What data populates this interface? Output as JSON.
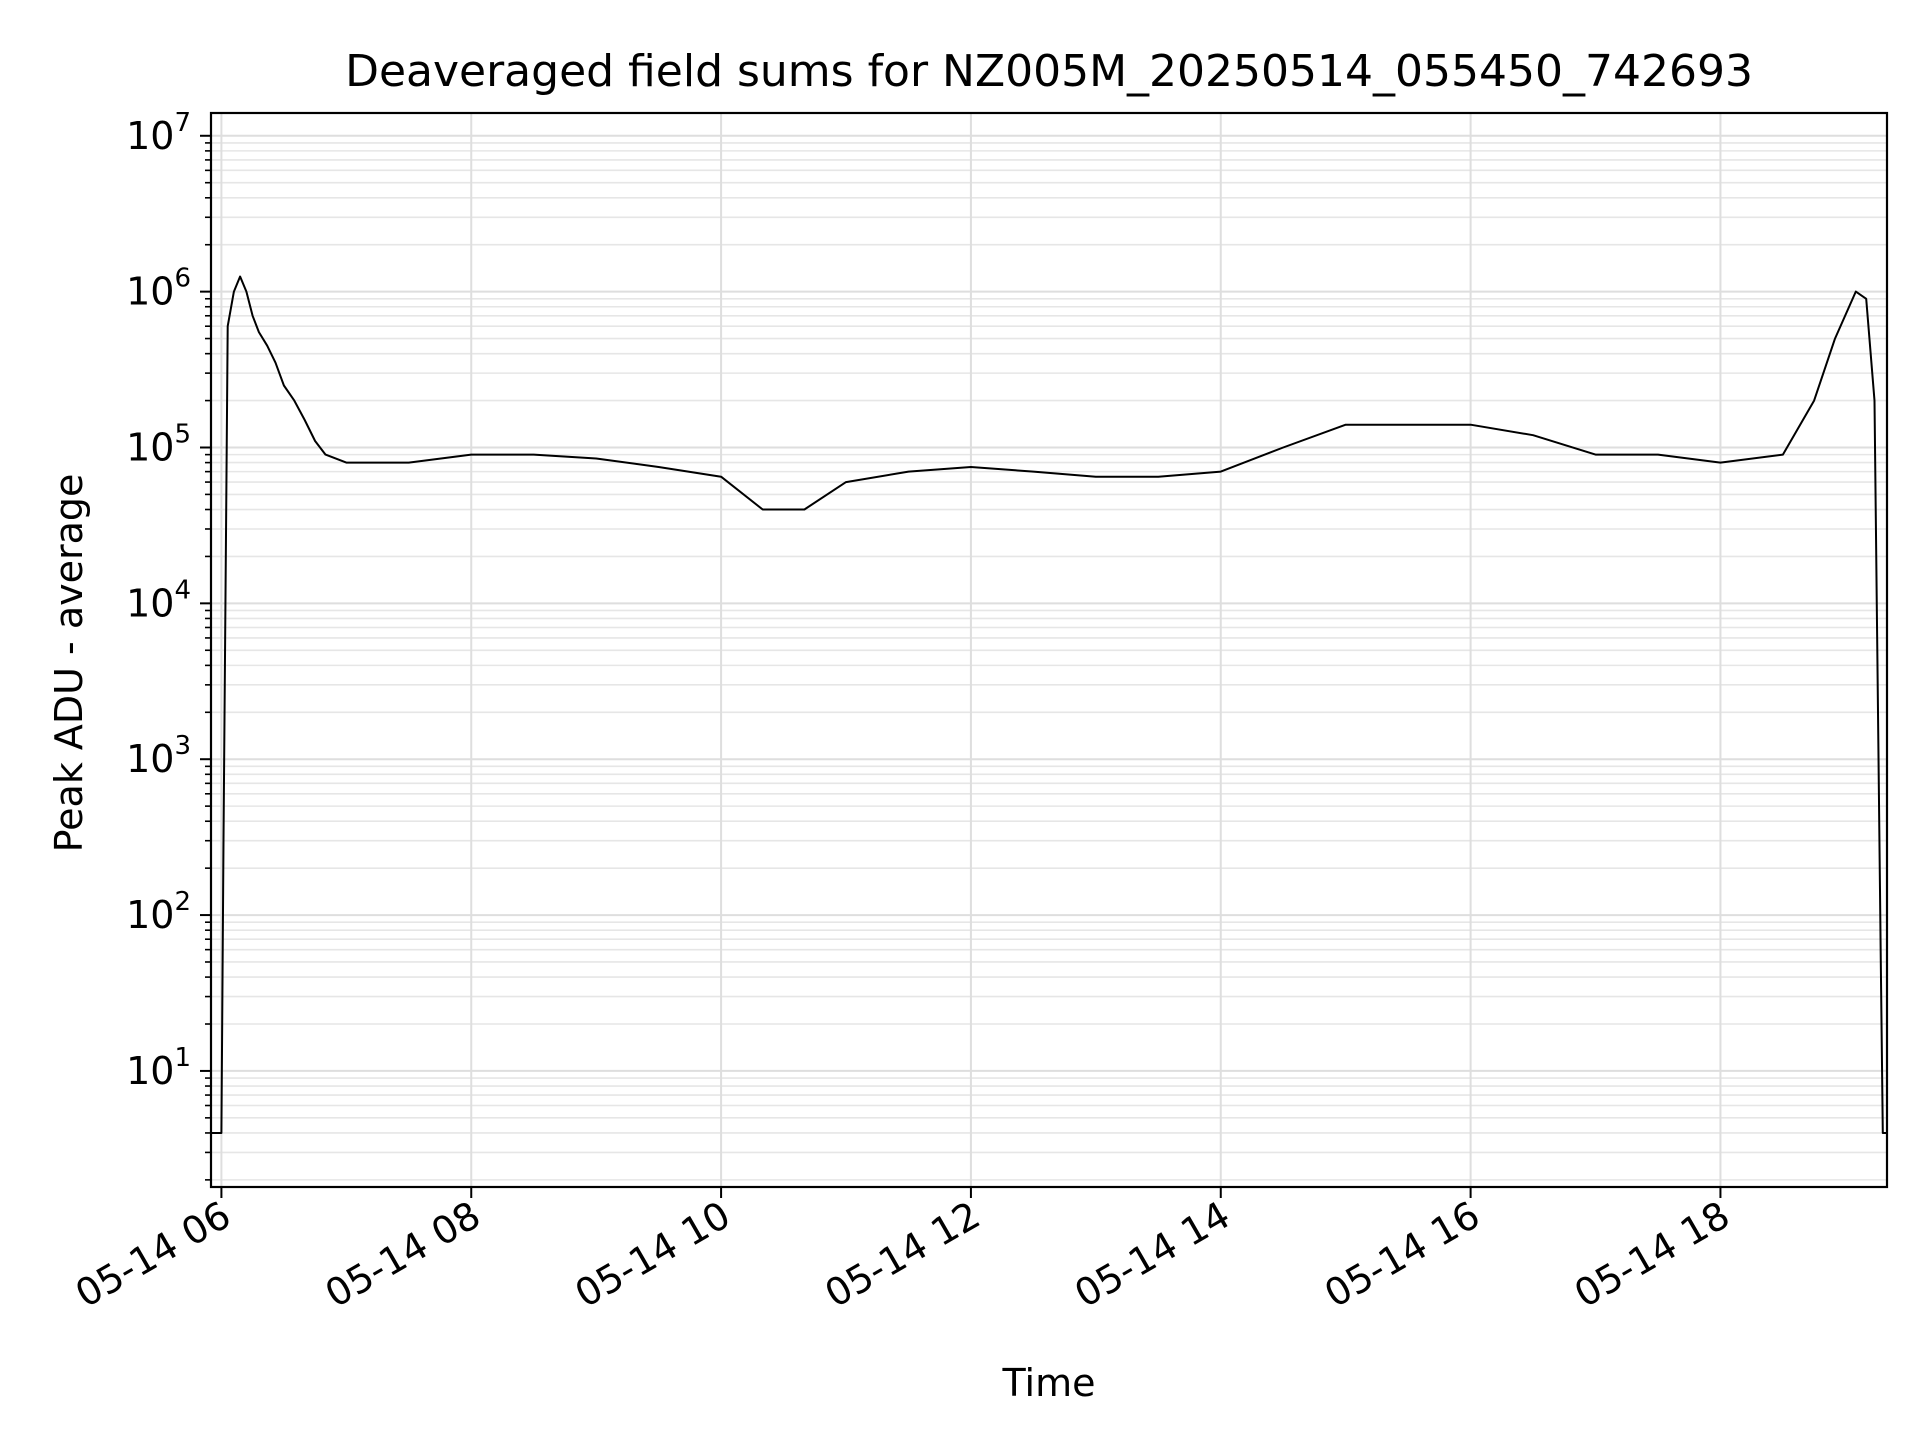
{
  "chart_data": {
    "type": "line",
    "title": "Deaveraged field sums for NZ005M_20250514_055450_742693",
    "xlabel": "Time",
    "ylabel": "Peak ADU - average",
    "yscale": "log",
    "xlim": [
      "2025-05-14 05:55",
      "2025-05-14 19:20"
    ],
    "ylim": [
      1.8,
      14000000
    ],
    "grid": true,
    "x_ticks": [
      {
        "value": "2025-05-14 06:00",
        "label": "05-14 06"
      },
      {
        "value": "2025-05-14 08:00",
        "label": "05-14 08"
      },
      {
        "value": "2025-05-14 10:00",
        "label": "05-14 10"
      },
      {
        "value": "2025-05-14 12:00",
        "label": "05-14 12"
      },
      {
        "value": "2025-05-14 14:00",
        "label": "05-14 14"
      },
      {
        "value": "2025-05-14 16:00",
        "label": "05-14 16"
      },
      {
        "value": "2025-05-14 18:00",
        "label": "05-14 18"
      }
    ],
    "y_ticks": [
      {
        "value": 10,
        "base": "10",
        "exp": "1"
      },
      {
        "value": 100,
        "base": "10",
        "exp": "2"
      },
      {
        "value": 1000,
        "base": "10",
        "exp": "3"
      },
      {
        "value": 10000,
        "base": "10",
        "exp": "4"
      },
      {
        "value": 100000,
        "base": "10",
        "exp": "5"
      },
      {
        "value": 1000000,
        "base": "10",
        "exp": "6"
      },
      {
        "value": 10000000,
        "base": "10",
        "exp": "7"
      }
    ],
    "series": [
      {
        "color": "#000000",
        "points": [
          [
            "2025-05-14 05:55",
            4
          ],
          [
            "2025-05-14 06:00",
            4
          ],
          [
            "2025-05-14 06:01",
            300
          ],
          [
            "2025-05-14 06:03",
            600000
          ],
          [
            "2025-05-14 06:06",
            1000000
          ],
          [
            "2025-05-14 06:09",
            1250000
          ],
          [
            "2025-05-14 06:12",
            1000000
          ],
          [
            "2025-05-14 06:15",
            700000
          ],
          [
            "2025-05-14 06:18",
            550000
          ],
          [
            "2025-05-14 06:22",
            450000
          ],
          [
            "2025-05-14 06:26",
            350000
          ],
          [
            "2025-05-14 06:30",
            250000
          ],
          [
            "2025-05-14 06:35",
            200000
          ],
          [
            "2025-05-14 06:40",
            150000
          ],
          [
            "2025-05-14 06:45",
            110000
          ],
          [
            "2025-05-14 06:50",
            90000
          ],
          [
            "2025-05-14 07:00",
            80000
          ],
          [
            "2025-05-14 07:30",
            80000
          ],
          [
            "2025-05-14 08:00",
            90000
          ],
          [
            "2025-05-14 08:30",
            90000
          ],
          [
            "2025-05-14 09:00",
            85000
          ],
          [
            "2025-05-14 09:30",
            75000
          ],
          [
            "2025-05-14 10:00",
            65000
          ],
          [
            "2025-05-14 10:20",
            40000
          ],
          [
            "2025-05-14 10:40",
            40000
          ],
          [
            "2025-05-14 11:00",
            60000
          ],
          [
            "2025-05-14 11:30",
            70000
          ],
          [
            "2025-05-14 12:00",
            75000
          ],
          [
            "2025-05-14 12:30",
            70000
          ],
          [
            "2025-05-14 13:00",
            65000
          ],
          [
            "2025-05-14 13:30",
            65000
          ],
          [
            "2025-05-14 14:00",
            70000
          ],
          [
            "2025-05-14 14:30",
            100000
          ],
          [
            "2025-05-14 15:00",
            140000
          ],
          [
            "2025-05-14 15:30",
            140000
          ],
          [
            "2025-05-14 16:00",
            140000
          ],
          [
            "2025-05-14 16:30",
            120000
          ],
          [
            "2025-05-14 17:00",
            90000
          ],
          [
            "2025-05-14 17:30",
            90000
          ],
          [
            "2025-05-14 18:00",
            80000
          ],
          [
            "2025-05-14 18:30",
            90000
          ],
          [
            "2025-05-14 18:45",
            200000
          ],
          [
            "2025-05-14 18:55",
            500000
          ],
          [
            "2025-05-14 19:05",
            1000000
          ],
          [
            "2025-05-14 19:10",
            900000
          ],
          [
            "2025-05-14 19:14",
            200000
          ],
          [
            "2025-05-14 19:17",
            50
          ],
          [
            "2025-05-14 19:18",
            4
          ],
          [
            "2025-05-14 19:20",
            4
          ]
        ]
      }
    ]
  }
}
